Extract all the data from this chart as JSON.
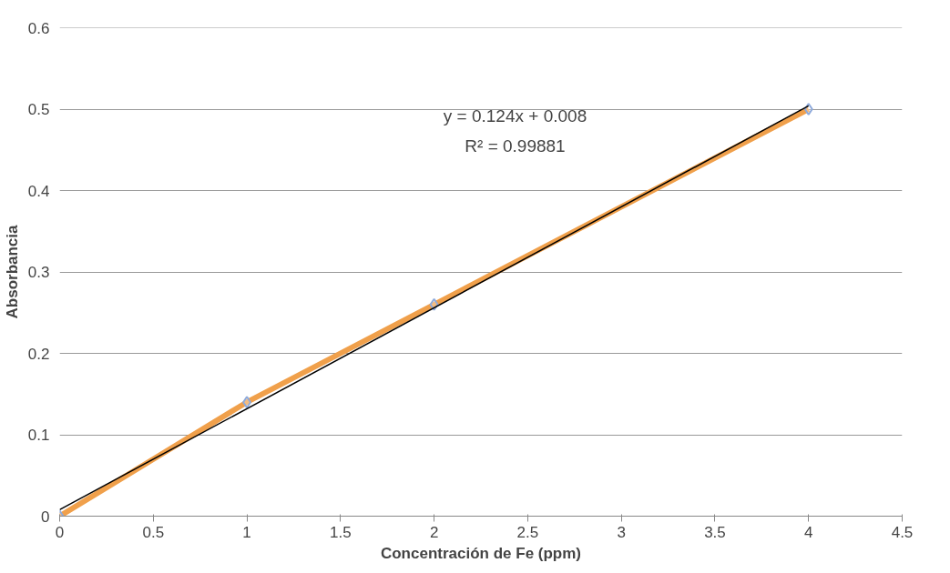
{
  "chart_data": {
    "type": "line",
    "xlabel": "Concentración de Fe (ppm)",
    "ylabel": "Absorbancia",
    "x": [
      0,
      1,
      2,
      4
    ],
    "series": [
      {
        "type": "line",
        "color": "#f0a04b",
        "values": [
          0,
          0.14,
          0.26,
          0.5
        ],
        "marker": "none"
      },
      {
        "type": "scatter",
        "color": "#8eaadb",
        "values": [
          0,
          0.14,
          0.26,
          0.5
        ],
        "marker": "diamond"
      },
      {
        "type": "line",
        "color": "#000000",
        "x": [
          0,
          4
        ],
        "values": [
          0.008,
          0.504
        ],
        "marker": "none"
      }
    ],
    "annotations": [
      "y = 0.124x + 0.008",
      "R² = 0.99881"
    ],
    "xlim": [
      0,
      4.5
    ],
    "ylim": [
      0,
      0.6
    ],
    "xticks": [
      0,
      0.5,
      1,
      1.5,
      2,
      2.5,
      3,
      3.5,
      4,
      4.5
    ],
    "yticks": [
      0,
      0.1,
      0.2,
      0.3,
      0.4,
      0.5,
      0.6
    ],
    "grid": "y"
  }
}
